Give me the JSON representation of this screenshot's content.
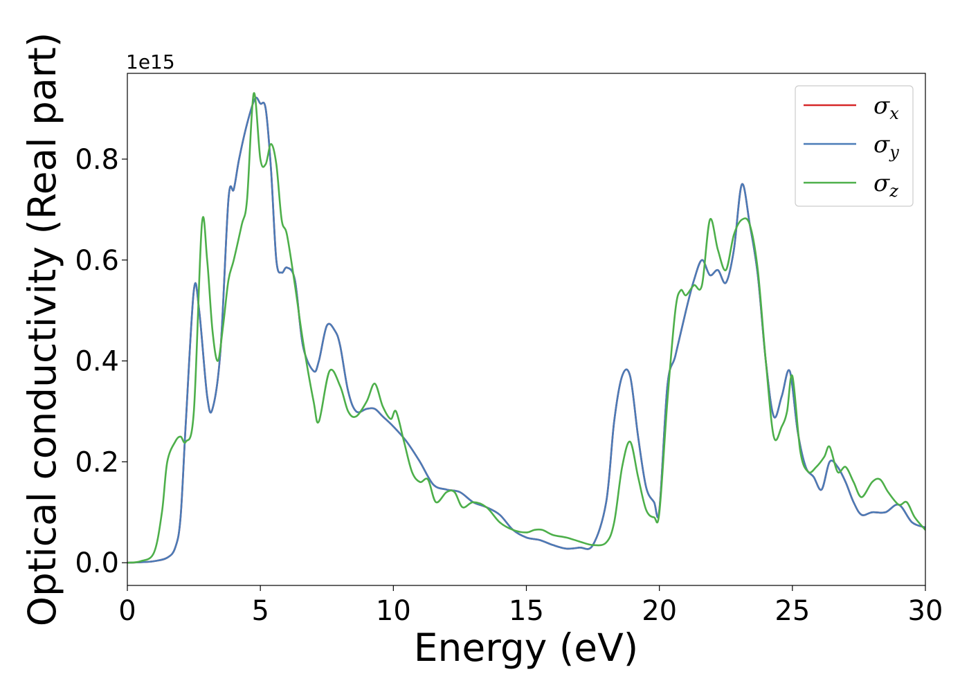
{
  "chart_data": {
    "type": "line",
    "xlabel": "Energy (eV)",
    "ylabel": "Optical conductivity (Real part)",
    "y_offset_label": "1e15",
    "xlim": [
      0,
      30
    ],
    "ylim": [
      -0.045,
      0.97
    ],
    "x_ticks": [
      0,
      5,
      10,
      15,
      20,
      25,
      30
    ],
    "y_ticks": [
      0.0,
      0.2,
      0.4,
      0.6,
      0.8
    ],
    "x_tick_labels": [
      "0",
      "5",
      "10",
      "15",
      "20",
      "25",
      "30"
    ],
    "y_tick_labels": [
      "0.0",
      "0.2",
      "0.4",
      "0.6",
      "0.8"
    ],
    "grid": false,
    "legend_position": "top-right",
    "series": [
      {
        "name": "σx",
        "legend_symbol": "σ",
        "legend_subscript": "x",
        "color": "#d62728",
        "x": [
          0,
          0.5,
          1.0,
          1.5,
          1.8,
          2.0,
          2.2,
          2.5,
          2.7,
          3.0,
          3.2,
          3.5,
          3.8,
          4.0,
          4.2,
          4.5,
          4.8,
          5.0,
          5.2,
          5.4,
          5.6,
          5.8,
          6.0,
          6.3,
          6.6,
          7.0,
          7.2,
          7.5,
          7.8,
          8.0,
          8.3,
          8.6,
          9.0,
          9.3,
          9.6,
          10.0,
          10.5,
          11.0,
          11.5,
          12.0,
          12.5,
          13.0,
          13.5,
          14.0,
          14.5,
          15.0,
          15.5,
          16.0,
          16.5,
          17.0,
          17.5,
          18.0,
          18.3,
          18.6,
          18.9,
          19.2,
          19.5,
          19.8,
          20.0,
          20.3,
          20.6,
          21.0,
          21.3,
          21.6,
          21.9,
          22.2,
          22.5,
          22.8,
          23.1,
          23.4,
          23.7,
          24.0,
          24.3,
          24.6,
          24.9,
          25.2,
          25.5,
          25.8,
          26.1,
          26.4,
          26.7,
          27.0,
          27.3,
          27.6,
          28.0,
          28.5,
          29.0,
          29.5,
          30.0
        ],
        "y": [
          0.0,
          0.001,
          0.003,
          0.01,
          0.03,
          0.09,
          0.28,
          0.54,
          0.5,
          0.33,
          0.305,
          0.42,
          0.72,
          0.74,
          0.8,
          0.87,
          0.92,
          0.91,
          0.9,
          0.78,
          0.6,
          0.575,
          0.585,
          0.56,
          0.43,
          0.38,
          0.4,
          0.47,
          0.46,
          0.43,
          0.34,
          0.3,
          0.305,
          0.305,
          0.29,
          0.27,
          0.24,
          0.2,
          0.155,
          0.145,
          0.14,
          0.12,
          0.11,
          0.095,
          0.065,
          0.05,
          0.045,
          0.035,
          0.028,
          0.03,
          0.035,
          0.12,
          0.28,
          0.37,
          0.37,
          0.25,
          0.15,
          0.12,
          0.105,
          0.35,
          0.41,
          0.5,
          0.56,
          0.6,
          0.57,
          0.58,
          0.555,
          0.62,
          0.75,
          0.67,
          0.57,
          0.4,
          0.29,
          0.33,
          0.38,
          0.26,
          0.19,
          0.17,
          0.145,
          0.2,
          0.19,
          0.16,
          0.12,
          0.095,
          0.1,
          0.1,
          0.115,
          0.08,
          0.07
        ]
      },
      {
        "name": "σy",
        "legend_symbol": "σ",
        "legend_subscript": "y",
        "color": "#4a7bb7",
        "x": [
          0,
          0.5,
          1.0,
          1.5,
          1.8,
          2.0,
          2.2,
          2.5,
          2.7,
          3.0,
          3.2,
          3.5,
          3.8,
          4.0,
          4.2,
          4.5,
          4.8,
          5.0,
          5.2,
          5.4,
          5.6,
          5.8,
          6.0,
          6.3,
          6.6,
          7.0,
          7.2,
          7.5,
          7.8,
          8.0,
          8.3,
          8.6,
          9.0,
          9.3,
          9.6,
          10.0,
          10.5,
          11.0,
          11.5,
          12.0,
          12.5,
          13.0,
          13.5,
          14.0,
          14.5,
          15.0,
          15.5,
          16.0,
          16.5,
          17.0,
          17.5,
          18.0,
          18.3,
          18.6,
          18.9,
          19.2,
          19.5,
          19.8,
          20.0,
          20.3,
          20.6,
          21.0,
          21.3,
          21.6,
          21.9,
          22.2,
          22.5,
          22.8,
          23.1,
          23.4,
          23.7,
          24.0,
          24.3,
          24.6,
          24.9,
          25.2,
          25.5,
          25.8,
          26.1,
          26.4,
          26.7,
          27.0,
          27.3,
          27.6,
          28.0,
          28.5,
          29.0,
          29.5,
          30.0
        ],
        "y": [
          0.0,
          0.001,
          0.003,
          0.01,
          0.03,
          0.09,
          0.28,
          0.54,
          0.5,
          0.33,
          0.305,
          0.42,
          0.72,
          0.74,
          0.8,
          0.87,
          0.92,
          0.91,
          0.9,
          0.78,
          0.6,
          0.575,
          0.585,
          0.56,
          0.43,
          0.38,
          0.4,
          0.47,
          0.46,
          0.43,
          0.34,
          0.3,
          0.305,
          0.305,
          0.29,
          0.27,
          0.24,
          0.2,
          0.155,
          0.145,
          0.14,
          0.12,
          0.11,
          0.095,
          0.065,
          0.05,
          0.045,
          0.035,
          0.028,
          0.03,
          0.035,
          0.12,
          0.28,
          0.37,
          0.37,
          0.25,
          0.15,
          0.12,
          0.105,
          0.35,
          0.41,
          0.5,
          0.56,
          0.6,
          0.57,
          0.58,
          0.555,
          0.62,
          0.75,
          0.67,
          0.57,
          0.4,
          0.29,
          0.33,
          0.38,
          0.26,
          0.19,
          0.17,
          0.145,
          0.2,
          0.19,
          0.16,
          0.12,
          0.095,
          0.1,
          0.1,
          0.115,
          0.08,
          0.07
        ]
      },
      {
        "name": "σz",
        "legend_symbol": "σ",
        "legend_subscript": "z",
        "color": "#4daf4a",
        "x": [
          0,
          0.5,
          1.0,
          1.3,
          1.5,
          1.8,
          2.0,
          2.2,
          2.5,
          2.8,
          3.0,
          3.2,
          3.4,
          3.6,
          3.8,
          4.0,
          4.3,
          4.5,
          4.75,
          5.0,
          5.2,
          5.4,
          5.6,
          5.8,
          6.0,
          6.3,
          6.6,
          7.0,
          7.2,
          7.6,
          8.0,
          8.3,
          8.6,
          9.0,
          9.3,
          9.6,
          9.9,
          10.1,
          10.4,
          10.7,
          11.0,
          11.3,
          11.6,
          12.0,
          12.3,
          12.6,
          13.0,
          13.5,
          14.0,
          14.5,
          15.0,
          15.3,
          15.6,
          16.0,
          16.5,
          17.0,
          17.5,
          18.0,
          18.3,
          18.6,
          18.9,
          19.2,
          19.5,
          19.8,
          20.0,
          20.3,
          20.6,
          20.8,
          21.0,
          21.3,
          21.6,
          21.9,
          22.2,
          22.5,
          22.8,
          23.1,
          23.4,
          23.7,
          24.0,
          24.3,
          24.6,
          24.8,
          25.0,
          25.3,
          25.6,
          25.9,
          26.2,
          26.4,
          26.7,
          27.0,
          27.3,
          27.6,
          28.0,
          28.3,
          28.6,
          29.0,
          29.3,
          29.6,
          30.0
        ],
        "y": [
          0.0,
          0.003,
          0.02,
          0.1,
          0.2,
          0.24,
          0.25,
          0.24,
          0.3,
          0.67,
          0.6,
          0.46,
          0.4,
          0.47,
          0.56,
          0.6,
          0.67,
          0.72,
          0.93,
          0.8,
          0.79,
          0.83,
          0.79,
          0.68,
          0.65,
          0.55,
          0.44,
          0.32,
          0.28,
          0.38,
          0.35,
          0.3,
          0.29,
          0.32,
          0.355,
          0.31,
          0.285,
          0.3,
          0.24,
          0.18,
          0.16,
          0.165,
          0.12,
          0.14,
          0.14,
          0.11,
          0.12,
          0.11,
          0.08,
          0.065,
          0.06,
          0.065,
          0.065,
          0.055,
          0.05,
          0.042,
          0.035,
          0.04,
          0.08,
          0.19,
          0.24,
          0.17,
          0.105,
          0.09,
          0.1,
          0.32,
          0.5,
          0.54,
          0.53,
          0.55,
          0.55,
          0.68,
          0.62,
          0.58,
          0.65,
          0.68,
          0.67,
          0.58,
          0.4,
          0.25,
          0.27,
          0.3,
          0.37,
          0.22,
          0.18,
          0.19,
          0.21,
          0.23,
          0.18,
          0.19,
          0.16,
          0.13,
          0.16,
          0.165,
          0.14,
          0.115,
          0.12,
          0.09,
          0.065
        ]
      }
    ]
  }
}
